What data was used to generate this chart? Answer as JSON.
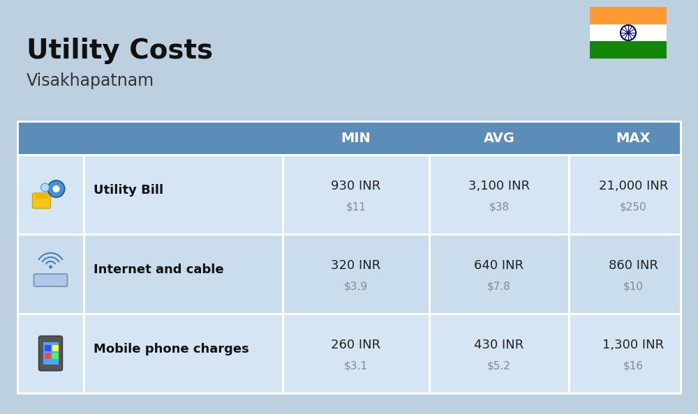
{
  "title": "Utility Costs",
  "subtitle": "Visakhapatnam",
  "bg_color": "#bdd0e0",
  "header_bg_color": "#5b8db8",
  "header_text_color": "#ffffff",
  "row_colors": [
    "#d6e5f3",
    "#c9dded"
  ],
  "divider_color": "#ffffff",
  "headers": [
    "MIN",
    "AVG",
    "MAX"
  ],
  "rows": [
    {
      "label": "Utility Bill",
      "min_inr": "930 INR",
      "min_usd": "$11",
      "avg_inr": "3,100 INR",
      "avg_usd": "$38",
      "max_inr": "21,000 INR",
      "max_usd": "$250"
    },
    {
      "label": "Internet and cable",
      "min_inr": "320 INR",
      "min_usd": "$3.9",
      "avg_inr": "640 INR",
      "avg_usd": "$7.8",
      "max_inr": "860 INR",
      "max_usd": "$10"
    },
    {
      "label": "Mobile phone charges",
      "min_inr": "260 INR",
      "min_usd": "$3.1",
      "avg_inr": "430 INR",
      "avg_usd": "$5.2",
      "max_inr": "1,300 INR",
      "max_usd": "$16"
    }
  ],
  "title_color": "#111111",
  "subtitle_color": "#333333",
  "label_color": "#111111",
  "inr_color": "#222222",
  "usd_color": "#888888"
}
